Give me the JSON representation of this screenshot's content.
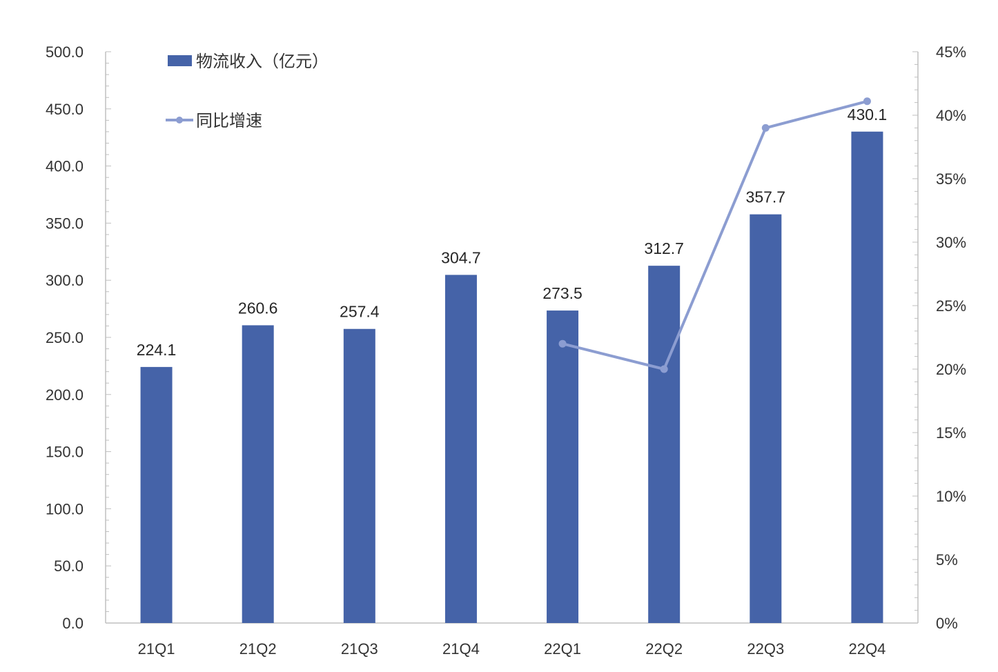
{
  "chart_data": {
    "type": "bar",
    "categories": [
      "21Q1",
      "21Q2",
      "21Q3",
      "21Q4",
      "22Q1",
      "22Q2",
      "22Q3",
      "22Q4"
    ],
    "series": [
      {
        "name": "物流收入（亿元）",
        "type": "bar",
        "axis": "left",
        "color": "#4563A8",
        "values": [
          224.1,
          260.6,
          257.4,
          304.7,
          273.5,
          312.7,
          357.7,
          430.1
        ],
        "labels": [
          "224.1",
          "260.6",
          "257.4",
          "304.7",
          "273.5",
          "312.7",
          "357.7",
          "430.1"
        ]
      },
      {
        "name": "同比增速",
        "type": "line",
        "axis": "right",
        "color": "#8C9DD1",
        "values": [
          null,
          null,
          null,
          null,
          0.22,
          0.2,
          0.39,
          0.411
        ]
      }
    ],
    "y_left": {
      "ylim": [
        0,
        500
      ],
      "ticks": [
        0,
        50,
        100,
        150,
        200,
        250,
        300,
        350,
        400,
        450,
        500
      ],
      "tick_labels": [
        "0.0",
        "50.0",
        "100.0",
        "150.0",
        "200.0",
        "250.0",
        "300.0",
        "350.0",
        "400.0",
        "450.0",
        "500.0"
      ]
    },
    "y_right": {
      "ylim": [
        0,
        0.45
      ],
      "ticks": [
        0,
        0.05,
        0.1,
        0.15,
        0.2,
        0.25,
        0.3,
        0.35,
        0.4,
        0.45
      ],
      "tick_labels": [
        "0%",
        "5%",
        "10%",
        "15%",
        "20%",
        "25%",
        "30%",
        "35%",
        "40%",
        "45%"
      ]
    },
    "legend_position": "top-left",
    "grid": false,
    "title": "",
    "xlabel": "",
    "ylabel": ""
  }
}
